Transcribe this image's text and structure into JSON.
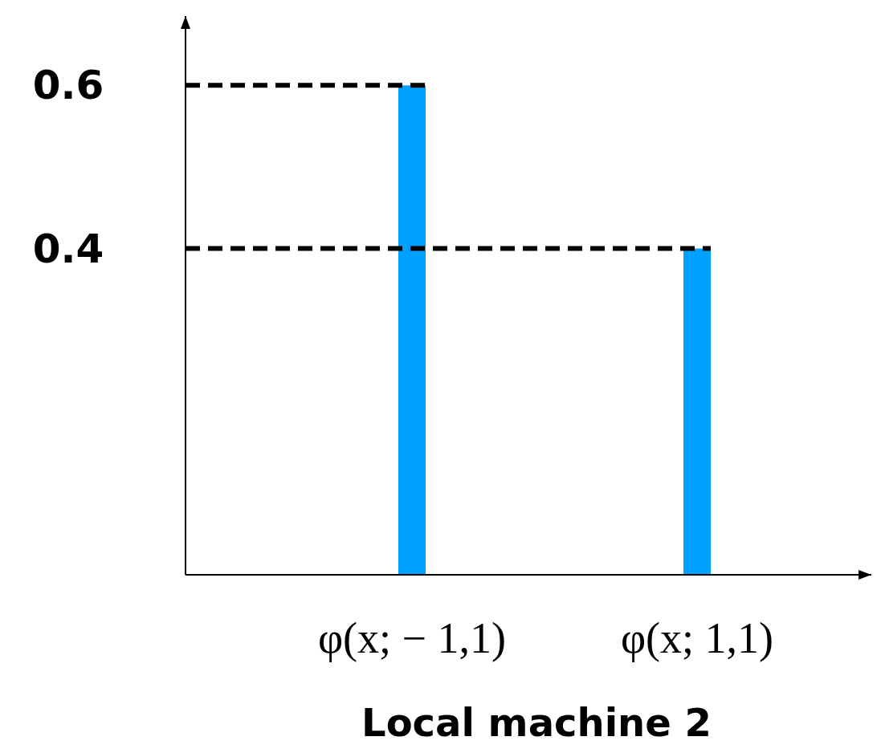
{
  "chart_data": {
    "type": "bar",
    "xlabel": "Local machine 2",
    "categories": [
      "φ(x; − 1,1)",
      "φ(x; 1,1)"
    ],
    "values": [
      0.6,
      0.4
    ],
    "color": "#00a0ff",
    "ylim": [
      0,
      0.685
    ],
    "yticks": [
      0.4,
      0.6
    ],
    "ref_lines": [
      {
        "axis": "y",
        "value": 0.6,
        "line_style": "dashed",
        "color": "#000000"
      },
      {
        "axis": "y",
        "value": 0.4,
        "line_style": "dashed",
        "color": "#000000"
      }
    ]
  }
}
